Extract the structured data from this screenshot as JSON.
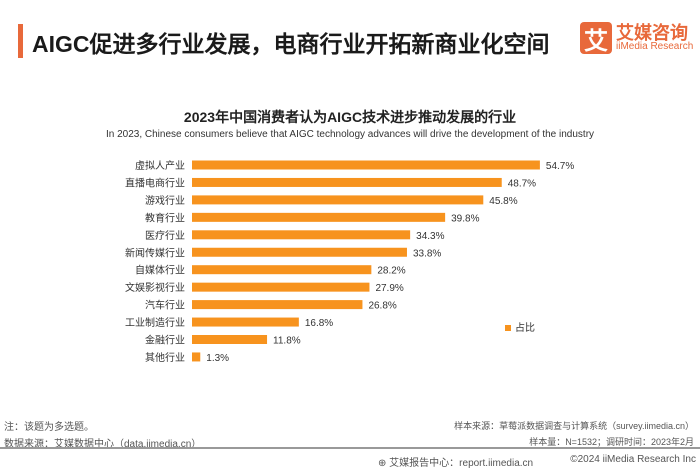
{
  "header": {
    "title": "AIGC促进多行业发展，电商行业开拓新商业化空间",
    "logo_mark": "艾",
    "logo_cn": "艾媒咨询",
    "logo_en": "iiMedia Research",
    "accent_color": "#e8693b"
  },
  "chart_data": {
    "type": "bar",
    "orientation": "horizontal",
    "title": "2023年中国消费者认为AIGC技术进步推动发展的行业",
    "subtitle": "In 2023, Chinese consumers believe that AIGC technology advances will drive the development of the industry",
    "categories": [
      "虚拟人产业",
      "直播电商行业",
      "游戏行业",
      "教育行业",
      "医疗行业",
      "新闻传媒行业",
      "自媒体行业",
      "文娱影视行业",
      "汽车行业",
      "工业制造行业",
      "金融行业",
      "其他行业"
    ],
    "series": [
      {
        "name": "占比",
        "values": [
          54.7,
          48.7,
          45.8,
          39.8,
          34.3,
          33.8,
          28.2,
          27.9,
          26.8,
          16.8,
          11.8,
          1.3
        ],
        "color": "#f7931e"
      }
    ],
    "value_suffix": "%",
    "legend": "right",
    "grid": false
  },
  "footer": {
    "note": "注：该题为多选题。",
    "data_source": "数据来源：艾媒数据中心（data.iimedia.cn）",
    "sample_source": "样本来源：草莓派数据调查与计算系统（survey.iimedia.cn）",
    "sample_size": "样本量：N=1532；调研时间：2023年2月",
    "report": "艾媒报告中心：report.iimedia.cn",
    "copyright": "©2024  iiMedia Research  Inc"
  }
}
